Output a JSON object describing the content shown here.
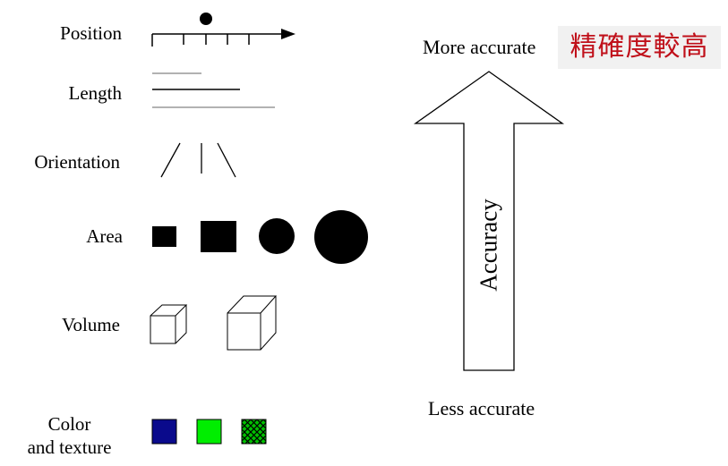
{
  "encodings": [
    {
      "id": "position",
      "label": "Position"
    },
    {
      "id": "length",
      "label": "Length"
    },
    {
      "id": "orientation",
      "label": "Orientation"
    },
    {
      "id": "area",
      "label": "Area"
    },
    {
      "id": "volume",
      "label": "Volume"
    },
    {
      "id": "color",
      "label_line1": "Color",
      "label_line2": "and texture"
    }
  ],
  "accuracy": {
    "top_label": "More accurate",
    "top_label_cn": "精確度較高",
    "bottom_label": "Less accurate",
    "arrow_label": "Accuracy"
  },
  "colors": {
    "swatch_blue": "#0a0a8c",
    "swatch_green": "#00ee00",
    "texture_green": "#00c000",
    "cn_text": "#c0101a",
    "cn_background": "#f1f1f1"
  }
}
